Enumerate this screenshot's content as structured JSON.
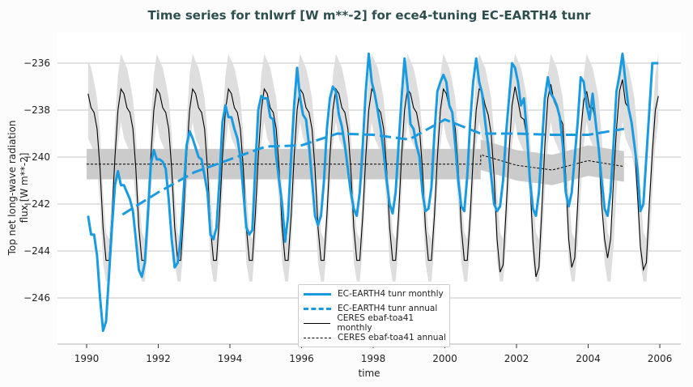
{
  "chart_data": {
    "type": "line",
    "title": "Time series for tnlwrf [W m**-2] for ece4-tuning EC-EARTH4 tunr",
    "xlabel": "time",
    "ylabel": "Top net long-wave radiation flux [W m**-2]",
    "xlim": [
      1989.2,
      2006.7
    ],
    "ylim": [
      -247.9,
      -235.0
    ],
    "xticks": [
      "1990",
      "1992",
      "1994",
      "1996",
      "1998",
      "2000",
      "2002",
      "2004",
      "2006"
    ],
    "yticks": [
      "-236",
      "-238",
      "-240",
      "-242",
      "-244",
      "-246"
    ],
    "grid": "horizontal",
    "legend_position": "bottom-center",
    "colors": {
      "model": "#1a9be0",
      "obs": "#000000",
      "obs_band": "#c8c8c8",
      "obs_monthly_band": "#dedede"
    },
    "series": [
      {
        "name": "EC-EARTH4 tunr monthly",
        "style": "solid",
        "start_year": 1990,
        "monthly_values": [
          -242.5,
          -243.3,
          -243.3,
          -244.2,
          -246.0,
          -247.4,
          -247.0,
          -245.0,
          -243.0,
          -241.2,
          -240.6,
          -241.2,
          -241.2,
          -241.5,
          -241.8,
          -242.3,
          -243.5,
          -244.8,
          -245.1,
          -244.5,
          -242.5,
          -240.3,
          -239.7,
          -240.1,
          -240.1,
          -240.2,
          -240.5,
          -241.8,
          -243.5,
          -244.7,
          -244.5,
          -243.5,
          -241.5,
          -239.5,
          -238.9,
          -239.2,
          -239.6,
          -240.0,
          -240.1,
          -240.8,
          -241.5,
          -243.3,
          -243.5,
          -243.0,
          -241.0,
          -238.5,
          -237.8,
          -238.3,
          -238.3,
          -238.8,
          -239.2,
          -240.0,
          -241.5,
          -243.0,
          -243.3,
          -243.1,
          -240.5,
          -238.0,
          -237.4,
          -237.5,
          -237.5,
          -238.3,
          -238.4,
          -240.0,
          -241.0,
          -242.0,
          -243.6,
          -242.5,
          -240.0,
          -237.8,
          -236.2,
          -237.5,
          -238.2,
          -238.4,
          -239.5,
          -241.0,
          -242.5,
          -242.9,
          -242.5,
          -241.0,
          -238.8,
          -237.5,
          -237.0,
          -237.2,
          -238.2,
          -238.7,
          -239.5,
          -240.5,
          -241.5,
          -242.2,
          -242.5,
          -241.5,
          -239.5,
          -237.2,
          -235.6,
          -236.8,
          -237.3,
          -238.0,
          -238.8,
          -239.8,
          -241.0,
          -242.0,
          -242.4,
          -241.5,
          -239.5,
          -237.5,
          -235.8,
          -237.0,
          -238.6,
          -238.8,
          -239.5,
          -240.0,
          -241.5,
          -242.3,
          -242.2,
          -241.3,
          -239.0,
          -237.2,
          -236.8,
          -236.5,
          -236.8,
          -237.8,
          -238.1,
          -239.5,
          -241.0,
          -242.1,
          -242.3,
          -240.8,
          -238.5,
          -236.8,
          -235.8,
          -236.8,
          -237.3,
          -238.5,
          -239.5,
          -240.8,
          -242.0,
          -242.3,
          -242.1,
          -241.0,
          -239.0,
          -237.5,
          -236.0,
          -236.2,
          -236.8,
          -237.8,
          -237.5,
          -239.0,
          -241.0,
          -242.2,
          -242.5,
          -241.5,
          -239.5,
          -237.5,
          -236.6,
          -237.3,
          -237.5,
          -237.8,
          -238.3,
          -239.5,
          -241.5,
          -242.1,
          -241.5,
          -240.0,
          -238.5,
          -236.6,
          -236.8,
          -237.8,
          -238.4,
          -237.3,
          -238.5,
          -239.6,
          -241.0,
          -242.2,
          -242.5,
          -241.5,
          -239.5,
          -237.2,
          -236.5,
          -235.6,
          -236.8,
          -237.9,
          -238.5,
          -239.5,
          -240.5,
          -242.3,
          -242.0,
          -240.0,
          -238.0,
          -236.0,
          -236.0,
          -236.0
        ]
      },
      {
        "name": "EC-EARTH4 tunr annual",
        "style": "dashed",
        "x": [
          1991,
          1992,
          1993,
          1994,
          1995,
          1996,
          1997,
          1998,
          1999,
          2000,
          2001,
          2002,
          2003,
          2004,
          2005
        ],
        "values": [
          -242.45,
          -241.5,
          -240.65,
          -240.1,
          -239.55,
          -239.5,
          -239.0,
          -239.05,
          -239.25,
          -238.4,
          -239.0,
          -239.0,
          -239.05,
          -239.05,
          -238.8
        ]
      },
      {
        "name": "CERES ebaf-toa41 monthly",
        "style": "solid-thin",
        "start_year": 1990,
        "monthly_values": [
          -237.3,
          -237.9,
          -238.1,
          -238.8,
          -240.5,
          -243.0,
          -244.4,
          -244.4,
          -242.5,
          -240.0,
          -238.0,
          -237.1,
          -237.3,
          -237.9,
          -238.1,
          -238.8,
          -240.5,
          -243.0,
          -244.4,
          -244.4,
          -242.5,
          -240.0,
          -238.0,
          -237.1,
          -237.3,
          -237.9,
          -238.1,
          -238.8,
          -240.5,
          -243.0,
          -244.4,
          -244.4,
          -242.5,
          -240.0,
          -238.0,
          -237.1,
          -237.3,
          -237.9,
          -238.1,
          -238.8,
          -240.5,
          -243.0,
          -244.4,
          -244.4,
          -242.5,
          -240.0,
          -238.0,
          -237.1,
          -237.3,
          -237.9,
          -238.1,
          -238.8,
          -240.5,
          -243.0,
          -244.4,
          -244.4,
          -242.5,
          -240.0,
          -238.0,
          -237.1,
          -237.3,
          -237.9,
          -238.1,
          -238.8,
          -240.5,
          -243.0,
          -244.4,
          -244.4,
          -242.5,
          -240.0,
          -238.0,
          -237.1,
          -237.3,
          -237.9,
          -238.1,
          -238.8,
          -240.5,
          -243.0,
          -244.4,
          -244.4,
          -242.5,
          -240.0,
          -238.0,
          -237.1,
          -237.3,
          -237.9,
          -238.1,
          -238.8,
          -240.5,
          -243.0,
          -244.4,
          -244.4,
          -242.5,
          -240.0,
          -238.0,
          -237.1,
          -237.3,
          -237.9,
          -238.1,
          -238.8,
          -240.5,
          -243.0,
          -244.4,
          -244.4,
          -242.5,
          -240.0,
          -238.0,
          -237.1,
          -237.3,
          -237.9,
          -238.1,
          -238.8,
          -240.5,
          -243.0,
          -244.4,
          -244.4,
          -242.5,
          -240.0,
          -238.0,
          -237.1,
          -237.3,
          -237.9,
          -238.1,
          -238.8,
          -240.5,
          -243.0,
          -244.4,
          -244.4,
          -242.5,
          -240.0,
          -238.0,
          -237.1,
          -237.2,
          -237.8,
          -238.2,
          -239.0,
          -240.8,
          -243.5,
          -244.9,
          -244.6,
          -242.3,
          -239.8,
          -237.8,
          -237.0,
          -237.6,
          -238.3,
          -238.4,
          -239.2,
          -241.0,
          -243.6,
          -245.1,
          -244.7,
          -242.2,
          -239.5,
          -237.5,
          -236.9,
          -237.6,
          -237.9,
          -238.3,
          -238.6,
          -240.8,
          -243.5,
          -244.7,
          -244.3,
          -242.0,
          -239.0,
          -237.6,
          -237.2,
          -237.9,
          -237.9,
          -238.5,
          -239.6,
          -242.0,
          -243.5,
          -244.3,
          -243.5,
          -241.0,
          -238.8,
          -237.2,
          -236.7,
          -237.7,
          -237.9,
          -238.4,
          -239.5,
          -241.5,
          -243.8,
          -244.8,
          -244.5,
          -242.0,
          -239.8,
          -238.0,
          -237.4
        ],
        "monthly_range_upper": [
          -235.9,
          -236.2,
          -236.8,
          -237.5,
          -239.0,
          -241.5,
          -243.2,
          -243.5,
          -241.5,
          -238.5,
          -236.5,
          -235.6
        ],
        "monthly_range_lower": [
          -239.2,
          -239.5,
          -239.8,
          -240.5,
          -242.0,
          -244.5,
          -245.3,
          -245.3,
          -243.8,
          -241.5,
          -239.5,
          -238.5
        ]
      },
      {
        "name": "CERES ebaf-toa41 annual",
        "style": "dashed-thin",
        "x": [
          1990,
          2001,
          2001,
          2002,
          2003,
          2004,
          2005
        ],
        "values": [
          -240.3,
          -240.3,
          -239.9,
          -240.35,
          -240.55,
          -240.15,
          -240.4
        ],
        "band_halfwidth": 0.65
      }
    ]
  }
}
